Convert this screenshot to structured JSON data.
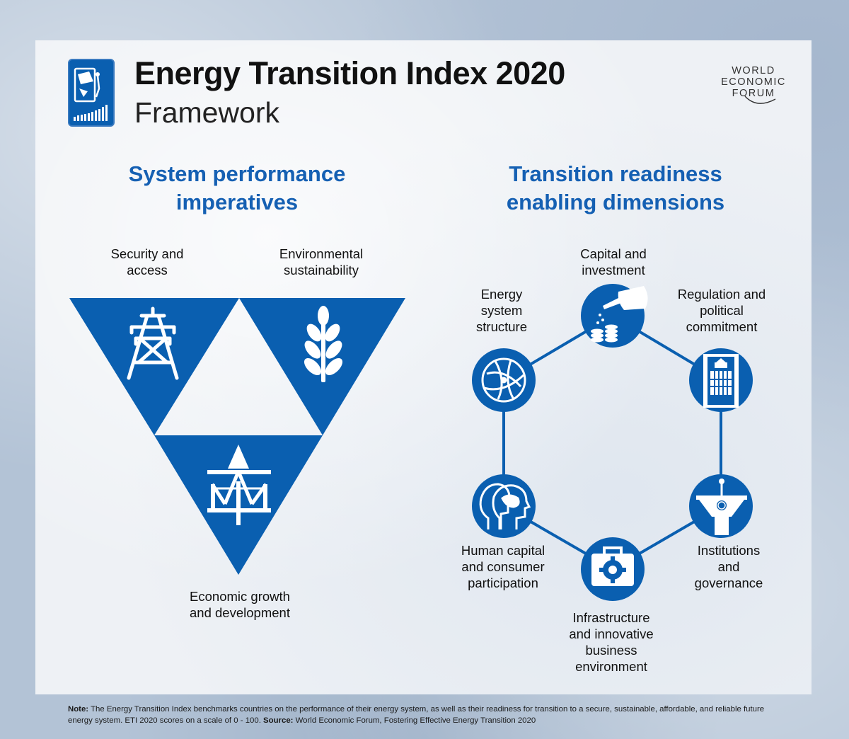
{
  "header": {
    "title": "Energy Transition Index 2020",
    "subtitle": "Framework"
  },
  "wef_logo": {
    "line1": "WORLD",
    "line2": "ECONOMIC",
    "line3": "FORUM"
  },
  "left_section": {
    "title_line1": "System performance",
    "title_line2": "imperatives",
    "items": [
      {
        "line1": "Security and",
        "line2": "access",
        "icon": "electricity-pylon-icon"
      },
      {
        "line1": "Environmental",
        "line2": "sustainability",
        "icon": "leaf-icon"
      },
      {
        "line1": "Economic growth",
        "line2": "and development",
        "icon": "economic-growth-icon"
      }
    ]
  },
  "right_section": {
    "title_line1": "Transition readiness",
    "title_line2": "enabling dimensions",
    "nodes": [
      {
        "lines": [
          "Capital and",
          "investment"
        ],
        "icon": "watering-can-coins-icon"
      },
      {
        "lines": [
          "Regulation and",
          "political",
          "commitment"
        ],
        "icon": "parliament-book-icon"
      },
      {
        "lines": [
          "Institutions",
          "and",
          "governance"
        ],
        "icon": "podium-icon"
      },
      {
        "lines": [
          "Infrastructure",
          "and innovative",
          "business",
          "environment"
        ],
        "icon": "briefcase-gear-icon"
      },
      {
        "lines": [
          "Human capital",
          "and consumer",
          "participation"
        ],
        "icon": "human-heads-icon"
      },
      {
        "lines": [
          "Energy",
          "system",
          "structure"
        ],
        "icon": "globe-network-icon"
      }
    ]
  },
  "footer": {
    "note_label": "Note:",
    "note_text": " The Energy Transition Index benchmarks countries on the performance of their energy system, as well as their readiness for transition to a secure, sustainable, affordable, and reliable future energy system. ETI 2020 scores on a scale of 0 - 100. ",
    "source_label": "Source:",
    "source_text": " World Economic Forum, Fostering Effective Energy Transition 2020"
  },
  "colors": {
    "brand_blue": "#0a5fb0",
    "title_blue": "#1560b3",
    "text": "#111111"
  }
}
